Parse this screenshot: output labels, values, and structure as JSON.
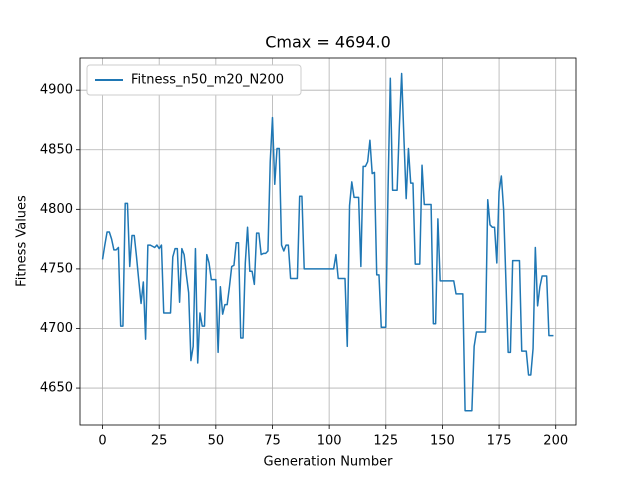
{
  "chart_data": {
    "type": "line",
    "title": "Cmax = 4694.0",
    "x_label": "Generation Number",
    "y_label": "Fitness Values",
    "x": [
      0,
      1,
      2,
      3,
      4,
      5,
      6,
      7,
      8,
      9,
      10,
      11,
      12,
      13,
      14,
      15,
      16,
      17,
      18,
      19,
      20,
      21,
      22,
      23,
      24,
      25,
      26,
      27,
      28,
      29,
      30,
      31,
      32,
      33,
      34,
      35,
      36,
      37,
      38,
      39,
      40,
      41,
      42,
      43,
      44,
      45,
      46,
      47,
      48,
      49,
      50,
      51,
      52,
      53,
      54,
      55,
      56,
      57,
      58,
      59,
      60,
      61,
      62,
      63,
      64,
      65,
      66,
      67,
      68,
      69,
      70,
      71,
      72,
      73,
      74,
      75,
      76,
      77,
      78,
      79,
      80,
      81,
      82,
      83,
      84,
      85,
      86,
      87,
      88,
      89,
      90,
      91,
      92,
      93,
      94,
      95,
      96,
      97,
      98,
      99,
      100,
      101,
      102,
      103,
      104,
      105,
      106,
      107,
      108,
      109,
      110,
      111,
      112,
      113,
      114,
      115,
      116,
      117,
      118,
      119,
      120,
      121,
      122,
      123,
      124,
      125,
      126,
      127,
      128,
      129,
      130,
      131,
      132,
      133,
      134,
      135,
      136,
      137,
      138,
      139,
      140,
      141,
      142,
      143,
      144,
      145,
      146,
      147,
      148,
      149,
      150,
      151,
      152,
      153,
      154,
      155,
      156,
      157,
      158,
      159,
      160,
      161,
      162,
      163,
      164,
      165,
      166,
      167,
      168,
      169,
      170,
      171,
      172,
      173,
      174,
      175,
      176,
      177,
      178,
      179,
      180,
      181,
      182,
      183,
      184,
      185,
      186,
      187,
      188,
      189,
      190,
      191,
      192,
      193,
      194,
      195,
      196,
      197,
      198,
      199
    ],
    "series": [
      {
        "name": "Fitness_n50_m20_N200",
        "color": "#1f77b4",
        "values": [
          4758,
          4770,
          4781,
          4781,
          4775,
          4766,
          4766,
          4768,
          4702,
          4702,
          4805,
          4805,
          4752,
          4778,
          4778,
          4760,
          4740,
          4721,
          4739,
          4691,
          4770,
          4770,
          4769,
          4768,
          4770,
          4767,
          4770,
          4713,
          4713,
          4713,
          4713,
          4760,
          4767,
          4767,
          4722,
          4767,
          4762,
          4745,
          4730,
          4673,
          4685,
          4767,
          4671,
          4713,
          4702,
          4702,
          4762,
          4755,
          4741,
          4741,
          4741,
          4680,
          4735,
          4712,
          4720,
          4720,
          4735,
          4752,
          4753,
          4772,
          4772,
          4692,
          4692,
          4755,
          4785,
          4748,
          4748,
          4737,
          4780,
          4780,
          4762,
          4763,
          4763,
          4765,
          4840,
          4877,
          4821,
          4851,
          4851,
          4770,
          4765,
          4770,
          4770,
          4742,
          4742,
          4742,
          4742,
          4811,
          4811,
          4750,
          4750,
          4750,
          4750,
          4750,
          4750,
          4750,
          4750,
          4750,
          4750,
          4750,
          4750,
          4750,
          4750,
          4762,
          4742,
          4742,
          4742,
          4742,
          4685,
          4803,
          4823,
          4810,
          4810,
          4810,
          4752,
          4836,
          4836,
          4840,
          4858,
          4830,
          4831,
          4745,
          4745,
          4701,
          4701,
          4701,
          4817,
          4910,
          4816,
          4816,
          4816,
          4870,
          4914,
          4860,
          4809,
          4851,
          4822,
          4822,
          4754,
          4754,
          4754,
          4837,
          4804,
          4804,
          4804,
          4804,
          4704,
          4704,
          4792,
          4740,
          4740,
          4740,
          4740,
          4740,
          4740,
          4740,
          4729,
          4729,
          4729,
          4729,
          4631,
          4631,
          4631,
          4631,
          4685,
          4697,
          4697,
          4697,
          4697,
          4697,
          4808,
          4787,
          4785,
          4785,
          4755,
          4815,
          4828,
          4800,
          4741,
          4680,
          4680,
          4757,
          4757,
          4757,
          4757,
          4681,
          4681,
          4681,
          4661,
          4661,
          4683,
          4768,
          4719,
          4735,
          4744,
          4744,
          4744,
          4694,
          4694,
          4694
        ]
      }
    ],
    "xlim": [
      -9.95,
      208.95
    ],
    "ylim": [
      4619,
      4927
    ],
    "xticks": [
      0,
      25,
      50,
      75,
      100,
      125,
      150,
      175,
      200
    ],
    "yticks": [
      4650,
      4700,
      4750,
      4800,
      4850,
      4900
    ],
    "grid": true,
    "legend": "upper left"
  }
}
